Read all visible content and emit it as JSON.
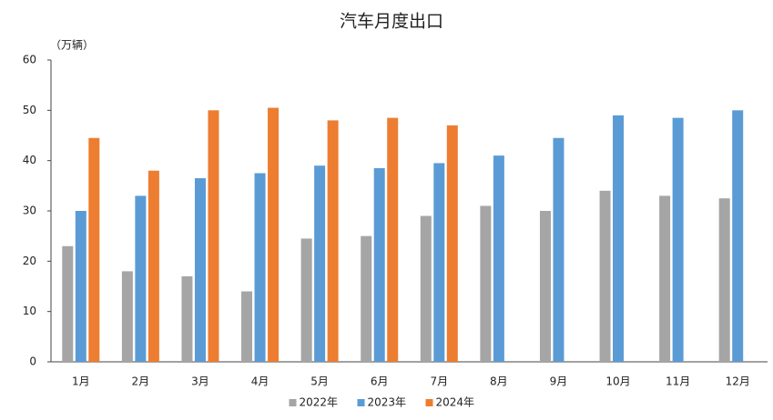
{
  "chart_data": {
    "type": "bar",
    "title": "汽车月度出口",
    "y_unit": "（万辆）",
    "categories": [
      "1月",
      "2月",
      "3月",
      "4月",
      "5月",
      "6月",
      "7月",
      "8月",
      "9月",
      "10月",
      "11月",
      "12月"
    ],
    "series": [
      {
        "name": "2022年",
        "color": "#a5a5a5",
        "values": [
          23,
          18,
          17,
          14,
          24.5,
          25,
          29,
          31,
          30,
          34,
          33,
          32.5
        ]
      },
      {
        "name": "2023年",
        "color": "#5b9bd5",
        "values": [
          30,
          33,
          36.5,
          37.5,
          39,
          38.5,
          39.5,
          41,
          44.5,
          49,
          48.5,
          50
        ]
      },
      {
        "name": "2024年",
        "color": "#ed7d31",
        "values": [
          44.5,
          38,
          50,
          50.5,
          48,
          48.5,
          47,
          null,
          null,
          null,
          null,
          null
        ]
      }
    ],
    "ylim": [
      0,
      60
    ],
    "yticks": [
      0,
      10,
      20,
      30,
      40,
      50,
      60
    ],
    "grid": false,
    "legend": "bottom"
  }
}
